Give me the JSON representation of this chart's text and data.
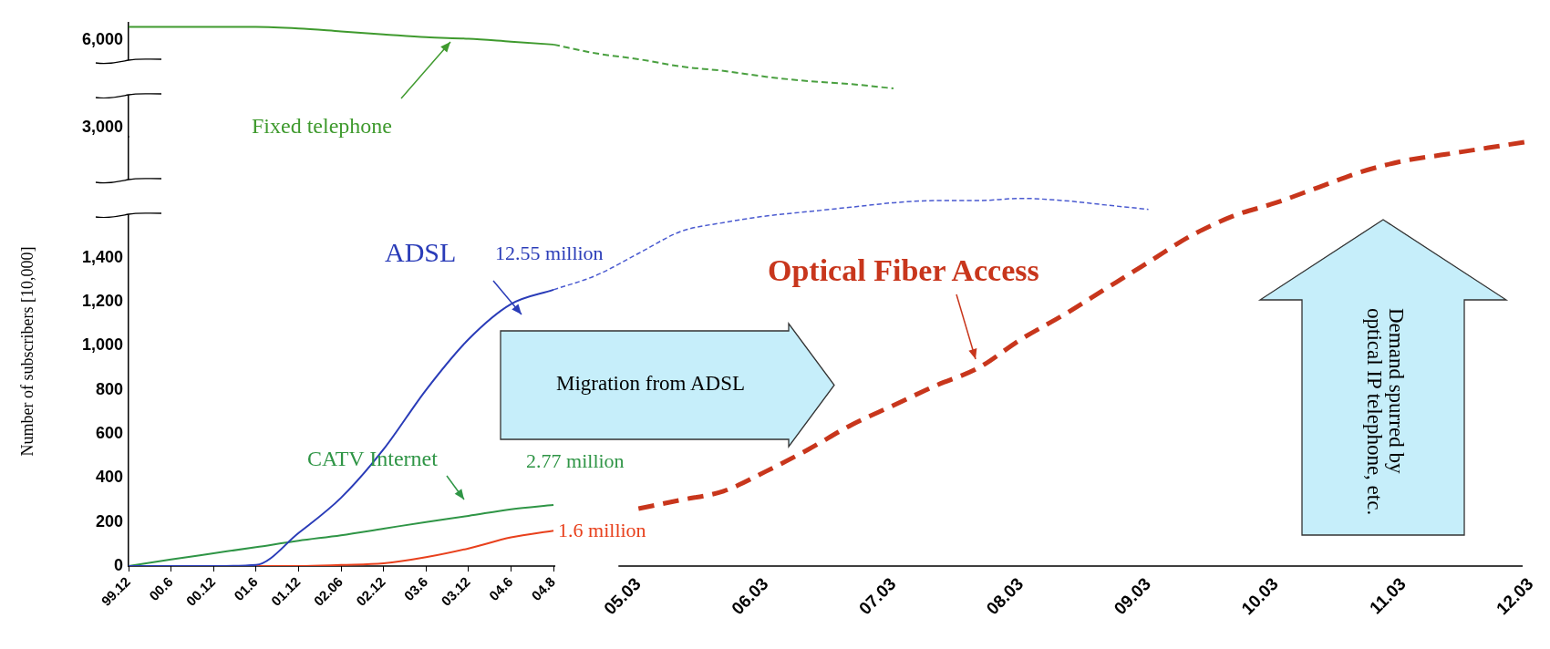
{
  "chart_data": [
    {
      "type": "line",
      "marker": "none",
      "tick_labels": "y",
      "categories": [
        "99.12",
        "00.6",
        "00.12",
        "01.6",
        "01.12",
        "02.06",
        "02.12",
        "03.6",
        "03.12",
        "04.6",
        "04.8",
        null,
        "05.03",
        null,
        null,
        "06.03",
        null,
        null,
        "07.03",
        null,
        null,
        "08.03",
        null,
        null,
        "09.03",
        null,
        null,
        "10.03",
        null,
        null,
        "11.03",
        null,
        null,
        "12.03"
      ],
      "ylim": [
        2700,
        6600
      ],
      "yticks": [
        {
          "value": 3000,
          "label": "3,000"
        },
        {
          "value": 6000,
          "label": "6,000"
        }
      ],
      "series": [
        {
          "name": "Fixed telephone",
          "color": "#3f9a2e",
          "line_style": "solid",
          "values": [
            6450,
            6450,
            6450,
            6450,
            6400,
            6300,
            6200,
            6100,
            6050,
            5950,
            5850,
            null,
            null,
            null,
            null,
            null,
            null,
            null,
            null,
            null,
            null,
            null,
            null,
            null,
            null,
            null,
            null,
            null,
            null,
            null,
            null,
            null,
            null,
            null
          ]
        },
        {
          "color": "#4aa040",
          "line_style": "dashed",
          "values": [
            null,
            null,
            null,
            null,
            null,
            null,
            null,
            null,
            null,
            null,
            5850,
            5550,
            5350,
            5100,
            4950,
            4750,
            4600,
            4500,
            4350,
            null,
            null,
            null,
            null,
            null,
            null,
            null,
            null,
            null,
            null,
            null,
            null,
            null,
            null,
            null
          ]
        }
      ]
    },
    {
      "type": "line",
      "ylabel": "Number of subscribers [10,000]",
      "marker": "none",
      "categories": [
        "99.12",
        "00.6",
        "00.12",
        "01.6",
        "01.12",
        "02.06",
        "02.12",
        "03.6",
        "03.12",
        "04.6",
        "04.8",
        null,
        "05.03",
        null,
        null,
        "06.03",
        null,
        null,
        "07.03",
        null,
        null,
        "08.03",
        null,
        null,
        "09.03",
        null,
        null,
        "10.03",
        null,
        null,
        "11.03",
        null,
        null,
        "12.03"
      ],
      "ylim": [
        0,
        1950
      ],
      "yticks": [
        0,
        200,
        400,
        600,
        800,
        {
          "value": 1000,
          "label": "1,000"
        },
        {
          "value": 1200,
          "label": "1,200"
        },
        {
          "value": 1400,
          "label": "1,400"
        }
      ],
      "series": [
        {
          "name": "ADSL",
          "color": "#2a3cb8",
          "line_style": "solid",
          "values": [
            0,
            0,
            0,
            5,
            150,
            310,
            530,
            800,
            1030,
            1190,
            1255,
            null,
            null,
            null,
            null,
            null,
            null,
            null,
            null,
            null,
            null,
            null,
            null,
            null,
            null,
            null,
            null,
            null,
            null,
            null,
            null,
            null,
            null,
            null
          ]
        },
        {
          "color": "#4a5ad0",
          "line_style": "dashed",
          "values": [
            null,
            null,
            null,
            null,
            null,
            null,
            null,
            null,
            null,
            null,
            1255,
            1320,
            1420,
            1520,
            1560,
            1590,
            1610,
            1630,
            1650,
            1660,
            1660,
            1670,
            1660,
            1640,
            1620,
            null,
            null,
            null,
            null,
            null,
            null,
            null,
            null,
            null
          ]
        },
        {
          "name": "CATV Internet",
          "color": "#2f9546",
          "line_style": "solid",
          "values": [
            0,
            30,
            58,
            86,
            115,
            140,
            170,
            200,
            228,
            258,
            277,
            null,
            null,
            null,
            null,
            null,
            null,
            null,
            null,
            null,
            null,
            null,
            null,
            null,
            null,
            null,
            null,
            null,
            null,
            null,
            null,
            null,
            null,
            null
          ]
        },
        {
          "color": "#e8401c",
          "line_style": "solid",
          "values": [
            null,
            null,
            null,
            0,
            0,
            5,
            12,
            40,
            80,
            130,
            160,
            null,
            null,
            null,
            null,
            null,
            null,
            null,
            null,
            null,
            null,
            null,
            null,
            null,
            null,
            null,
            null,
            null,
            null,
            null,
            null,
            null,
            null,
            null
          ]
        },
        {
          "name": "Optical Fiber Access",
          "color": "#c8361c",
          "line_style": "dashed",
          "values": [
            null,
            null,
            null,
            null,
            null,
            null,
            null,
            null,
            null,
            null,
            null,
            null,
            261,
            300,
            340,
            430,
            530,
            640,
            730,
            820,
            900,
            1030,
            1140,
            1260,
            1380,
            1500,
            1590,
            1650,
            1720,
            1790,
            1840,
            1870,
            1900,
            1930
          ]
        }
      ],
      "annotations": [
        {
          "text": "12.55 million",
          "x": "04.8",
          "y": 1255
        },
        {
          "text": "2.77 million",
          "x": "04.8",
          "y": 277
        },
        {
          "text": "1.6 million",
          "x": "04.8",
          "y": 160
        },
        "Migration from ADSL",
        "Demand spurred by optical IP telephone, etc."
      ]
    }
  ]
}
